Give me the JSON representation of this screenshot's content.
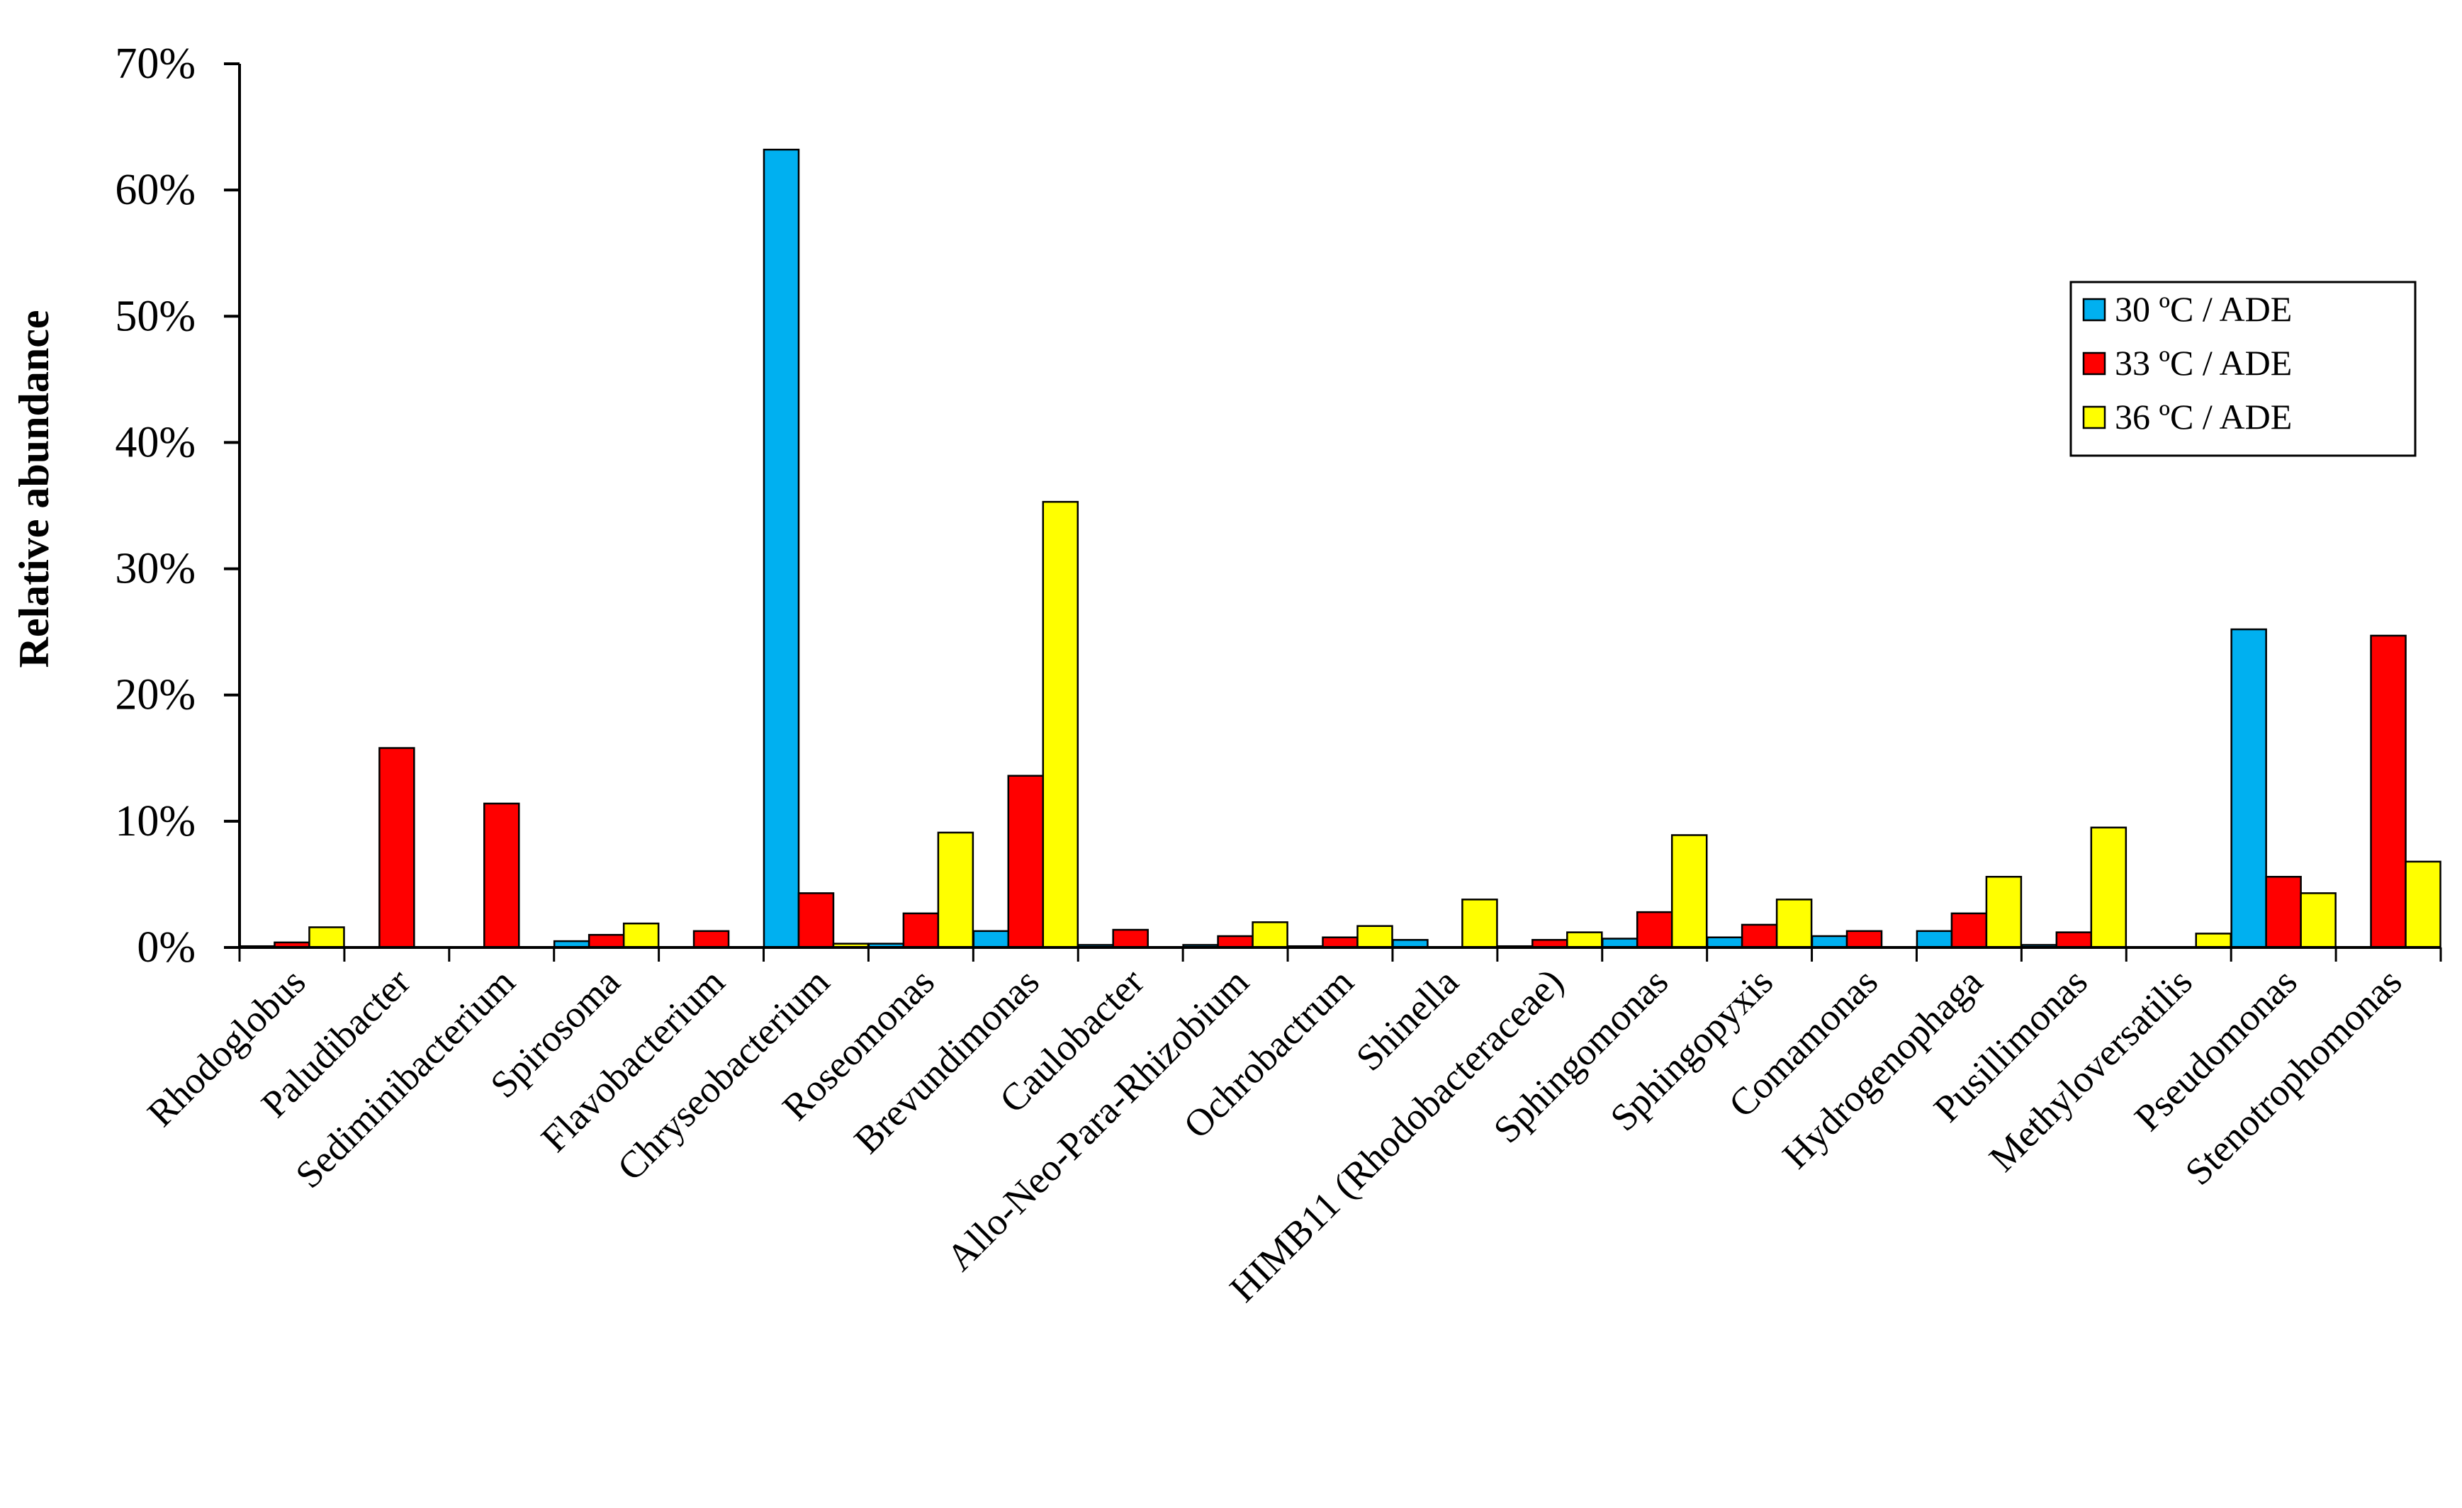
{
  "chart_data": {
    "type": "bar",
    "title": "",
    "xlabel": "",
    "ylabel": "Relative abundance",
    "ylim": [
      0,
      70
    ],
    "y_ticks": [
      0,
      10,
      20,
      30,
      40,
      50,
      60,
      70
    ],
    "y_tick_labels": [
      "0%",
      "10%",
      "20%",
      "30%",
      "40%",
      "50%",
      "60%",
      "70%"
    ],
    "grid": false,
    "legend_position": "top-right",
    "categories": [
      "Rhodoglobus",
      "Paludibacter",
      "Sediminibacterium",
      "Spirosoma",
      "Flavobacterium",
      "Chryseobacterium",
      "Roseomonas",
      "Brevundimonas",
      "Caulobacter",
      "Allo-Neo-Para-Rhizobium",
      "Ochrobactrum",
      "Shinella",
      "HIMB11 (Rhodobacteraceae)",
      "Sphingomonas",
      "Sphingopyxis",
      "Comamonas",
      "Hydrogenophaga",
      "Pusillimonas",
      "Methyloversatilis",
      "Pseudomonas",
      "Stenotrophomonas"
    ],
    "series": [
      {
        "name": "30 ºC / ADE",
        "color": "#00b0f0",
        "values": [
          0.1,
          0.0,
          0.0,
          0.5,
          0.0,
          63.2,
          0.3,
          1.3,
          0.2,
          0.2,
          0.1,
          0.6,
          0.1,
          0.7,
          0.8,
          0.9,
          1.3,
          0.2,
          0.0,
          25.2,
          0.0
        ]
      },
      {
        "name": "33 ºC / ADE",
        "color": "#ff0000",
        "values": [
          0.4,
          15.8,
          11.4,
          1.0,
          1.3,
          4.3,
          2.7,
          13.6,
          1.4,
          0.9,
          0.8,
          0.0,
          0.6,
          2.8,
          1.8,
          1.3,
          2.7,
          1.2,
          0.0,
          5.6,
          24.7
        ]
      },
      {
        "name": "36 ºC / ADE",
        "color": "#ffff00",
        "values": [
          1.6,
          0.0,
          0.0,
          1.9,
          0.0,
          0.3,
          9.1,
          35.3,
          0.0,
          2.0,
          1.7,
          3.8,
          1.2,
          8.9,
          3.8,
          0.0,
          5.6,
          9.5,
          1.1,
          4.3,
          6.8
        ]
      }
    ]
  }
}
